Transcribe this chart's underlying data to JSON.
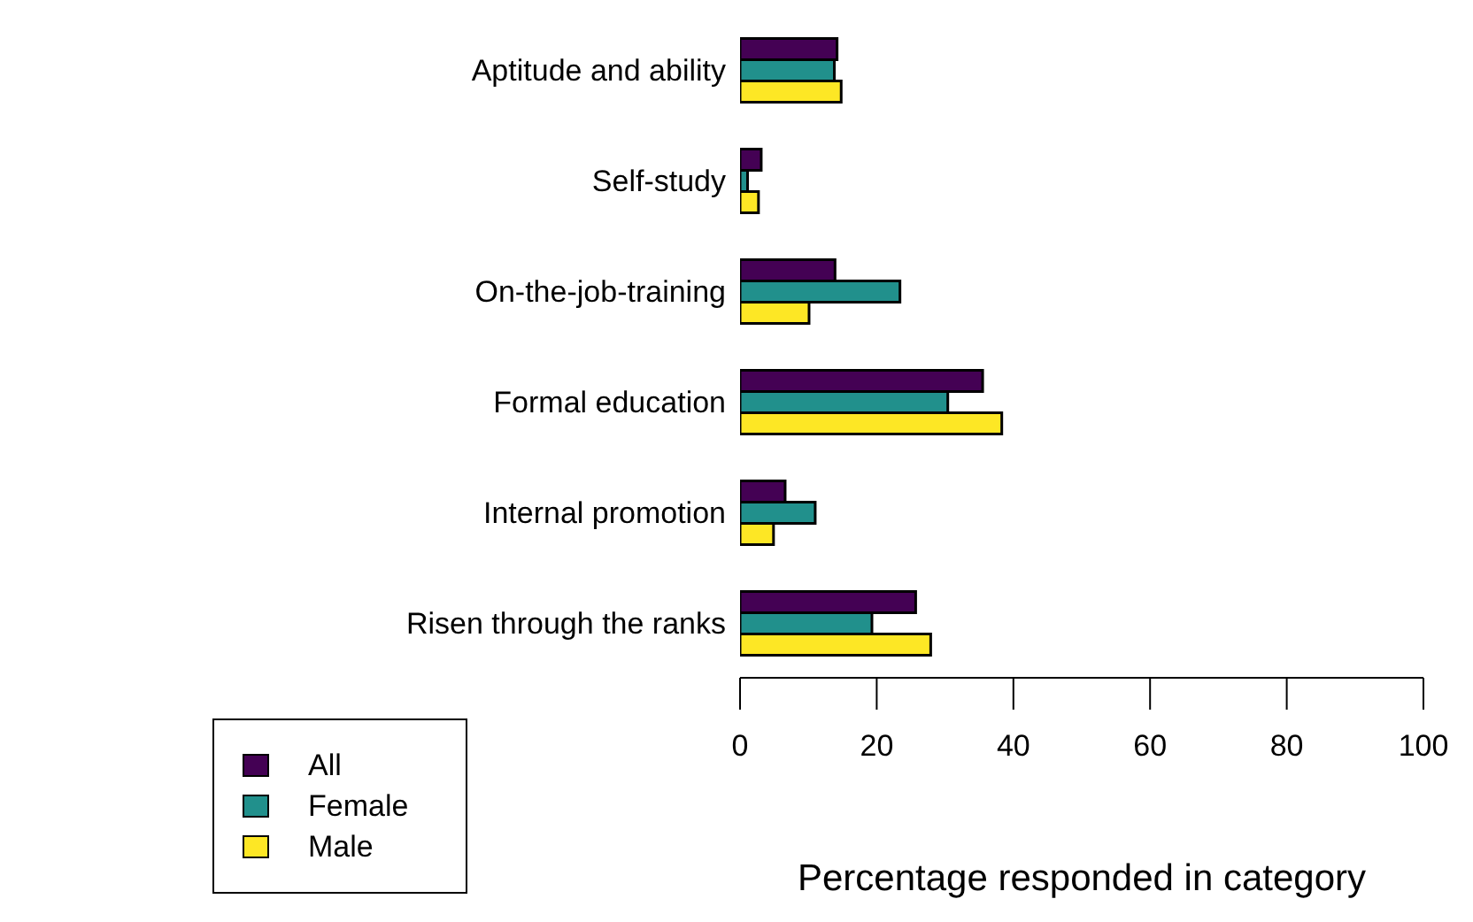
{
  "chart_data": {
    "type": "bar",
    "orientation": "horizontal",
    "xlabel": "Percentage responded in category",
    "categories": [
      "Aptitude and ability",
      "Self-study",
      "On-the-job-training",
      "Formal education",
      "Internal promotion",
      "Risen through the ranks"
    ],
    "series": [
      {
        "name": "All",
        "color": "#440154",
        "values": [
          14.2,
          3.1,
          13.9,
          35.5,
          6.6,
          25.7
        ]
      },
      {
        "name": "Female",
        "color": "#21908c",
        "values": [
          13.8,
          1.1,
          23.4,
          30.4,
          11.0,
          19.3
        ]
      },
      {
        "name": "Male",
        "color": "#fde725",
        "values": [
          14.8,
          2.7,
          10.1,
          38.3,
          4.9,
          27.9
        ]
      }
    ],
    "xlim": [
      0,
      100
    ],
    "xticks": [
      0,
      20,
      40,
      60,
      80,
      100
    ],
    "grid": false,
    "legend": "bottom left"
  }
}
